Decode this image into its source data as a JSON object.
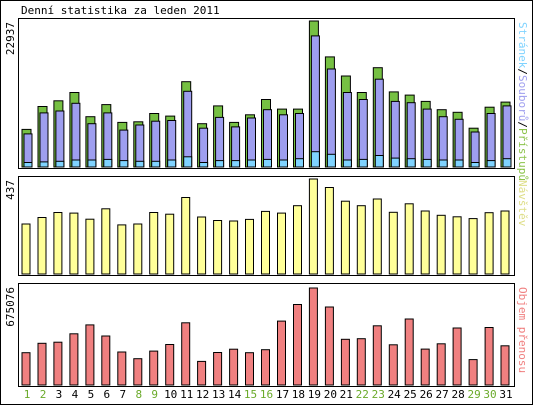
{
  "chart_data": {
    "type": "bar",
    "title": "Denní statistika za leden 2011",
    "categories": [
      "1",
      "2",
      "3",
      "4",
      "5",
      "6",
      "7",
      "8",
      "9",
      "10",
      "11",
      "12",
      "13",
      "14",
      "15",
      "16",
      "17",
      "18",
      "19",
      "20",
      "21",
      "22",
      "23",
      "24",
      "25",
      "26",
      "27",
      "28",
      "29",
      "30",
      "31"
    ],
    "weekend_days": [
      "1",
      "2",
      "8",
      "9",
      "15",
      "16",
      "22",
      "23",
      "29",
      "30"
    ],
    "panels": [
      {
        "id": "top",
        "ymax_label": "22937",
        "ymax": 22937,
        "legend": [
          {
            "text": "Stránek",
            "color": "#7fd3ff"
          },
          {
            "text": "/",
            "color": "#000000"
          },
          {
            "text": "Souborů",
            "color": "#9e9eef"
          },
          {
            "text": "/",
            "color": "#000000"
          },
          {
            "text": "Přístupů",
            "color": "#8bc34a"
          }
        ],
        "series": [
          {
            "name": "Přístupů",
            "color": "#76c043",
            "values": [
              5900,
              9500,
              10400,
              11700,
              7900,
              9800,
              7000,
              7100,
              8400,
              8000,
              13400,
              6800,
              9600,
              7000,
              8200,
              10600,
              9100,
              9100,
              22937,
              17300,
              14300,
              11700,
              15600,
              11800,
              11300,
              10300,
              9000,
              8600,
              6100,
              9400,
              10200
            ]
          },
          {
            "name": "Souborů",
            "color": "#9e9eef",
            "values": [
              5200,
              8500,
              8800,
              10000,
              6800,
              8500,
              5800,
              6600,
              7200,
              7300,
              11900,
              6100,
              7800,
              6300,
              7700,
              9000,
              8200,
              8400,
              20600,
              15400,
              11700,
              10600,
              13800,
              10300,
              10100,
              9100,
              7900,
              7500,
              5500,
              8400,
              9600
            ]
          },
          {
            "name": "Stránek",
            "color": "#7fd3ff",
            "values": [
              700,
              800,
              900,
              1100,
              1100,
              1200,
              1000,
              900,
              900,
              1100,
              1600,
              700,
              1000,
              1000,
              1100,
              1200,
              1100,
              1300,
              2400,
              2000,
              1100,
              1200,
              1800,
              1400,
              1300,
              1200,
              1100,
              1100,
              700,
              1000,
              1300
            ]
          }
        ]
      },
      {
        "id": "middle",
        "ymax_label": "437",
        "ymax": 437,
        "legend": [
          {
            "text": "Návštěv",
            "color": "#dede88"
          }
        ],
        "series": [
          {
            "name": "Návštěv",
            "color": "#ffff99",
            "values": [
              230,
              260,
              283,
              280,
              252,
              300,
              226,
              230,
              283,
              275,
              352,
              262,
              246,
              244,
              251,
              288,
              280,
              314,
              437,
              398,
              335,
              314,
              345,
              284,
              323,
              290,
              270,
              263,
              255,
              282,
              290
            ]
          }
        ]
      },
      {
        "id": "bottom",
        "ymax_label": "675076",
        "ymax": 675076,
        "legend": [
          {
            "text": "Objem přenosu",
            "color": "#f08080"
          }
        ],
        "series": [
          {
            "name": "Objem přenosu",
            "color": "#f08080",
            "values": [
              225000,
              290000,
              298000,
              356000,
              418000,
              341000,
              230000,
              183000,
              236000,
              282000,
              433000,
              164000,
              226000,
              249000,
              225000,
              246000,
              445000,
              560000,
              675076,
              543000,
              318000,
              322000,
              412000,
              280000,
              459000,
              250000,
              287000,
              397000,
              177000,
              400000,
              273000
            ]
          }
        ]
      }
    ]
  }
}
